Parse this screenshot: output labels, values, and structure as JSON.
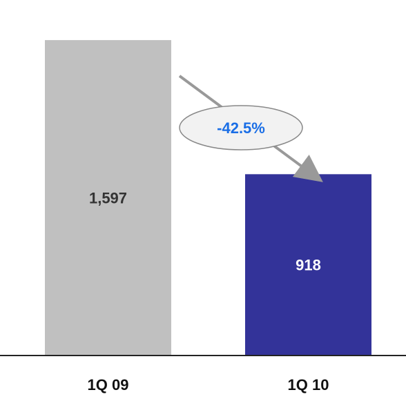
{
  "chart_data": {
    "type": "bar",
    "categories": [
      "1Q 09",
      "1Q 10"
    ],
    "values": [
      1597,
      918
    ],
    "value_labels": [
      "1,597",
      "918"
    ],
    "colors": [
      "#c0c0c0",
      "#333399"
    ],
    "value_label_colors": [
      "#333333",
      "#ffffff"
    ],
    "change_annotation": {
      "text": "-42.5%",
      "from": "1Q 09",
      "to": "1Q 10",
      "text_color": "#1a6ee6",
      "fill": "#f2f2f2",
      "arrow_color": "#999999"
    },
    "ylim": [
      0,
      1800
    ],
    "grid": false,
    "legend": "none"
  }
}
